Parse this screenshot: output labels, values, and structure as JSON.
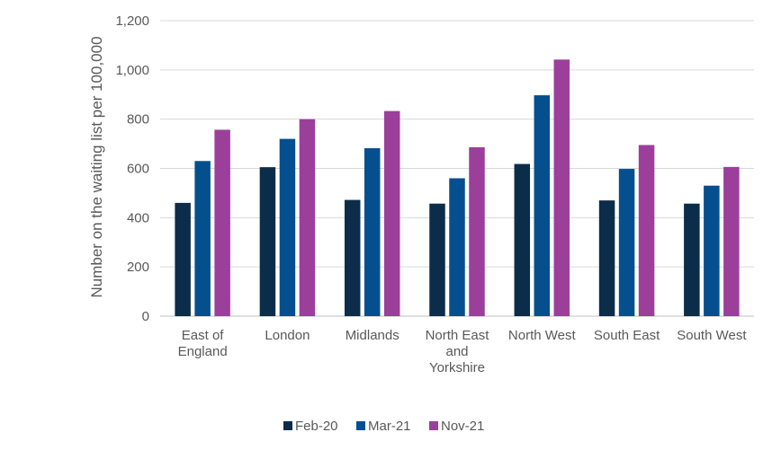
{
  "chart_data": {
    "type": "bar",
    "categories": [
      [
        "East of",
        "England"
      ],
      [
        "London"
      ],
      [
        "Midlands"
      ],
      [
        "North East",
        "and",
        "Yorkshire"
      ],
      [
        "North West"
      ],
      [
        "South East"
      ],
      [
        "South West"
      ]
    ],
    "series": [
      {
        "name": "Feb-20",
        "color": "#0b2d4a",
        "values": [
          460,
          605,
          472,
          457,
          618,
          470,
          457
        ]
      },
      {
        "name": "Mar-21",
        "color": "#064f8f",
        "values": [
          630,
          720,
          682,
          560,
          897,
          598,
          530
        ]
      },
      {
        "name": "Nov-21",
        "color": "#9b3f9b",
        "values": [
          757,
          800,
          833,
          686,
          1042,
          695,
          606
        ]
      }
    ],
    "ylabel": "Number on the waiting list per 100,000",
    "ylim": [
      0,
      1200
    ],
    "yticks": [
      {
        "value": 0,
        "label": "0"
      },
      {
        "value": 200,
        "label": "200"
      },
      {
        "value": 400,
        "label": "400"
      },
      {
        "value": 600,
        "label": "600"
      },
      {
        "value": 800,
        "label": "800"
      },
      {
        "value": 1000,
        "label": "1,000"
      },
      {
        "value": 1200,
        "label": "1,200"
      }
    ],
    "grid": true,
    "legend": "bottom"
  }
}
